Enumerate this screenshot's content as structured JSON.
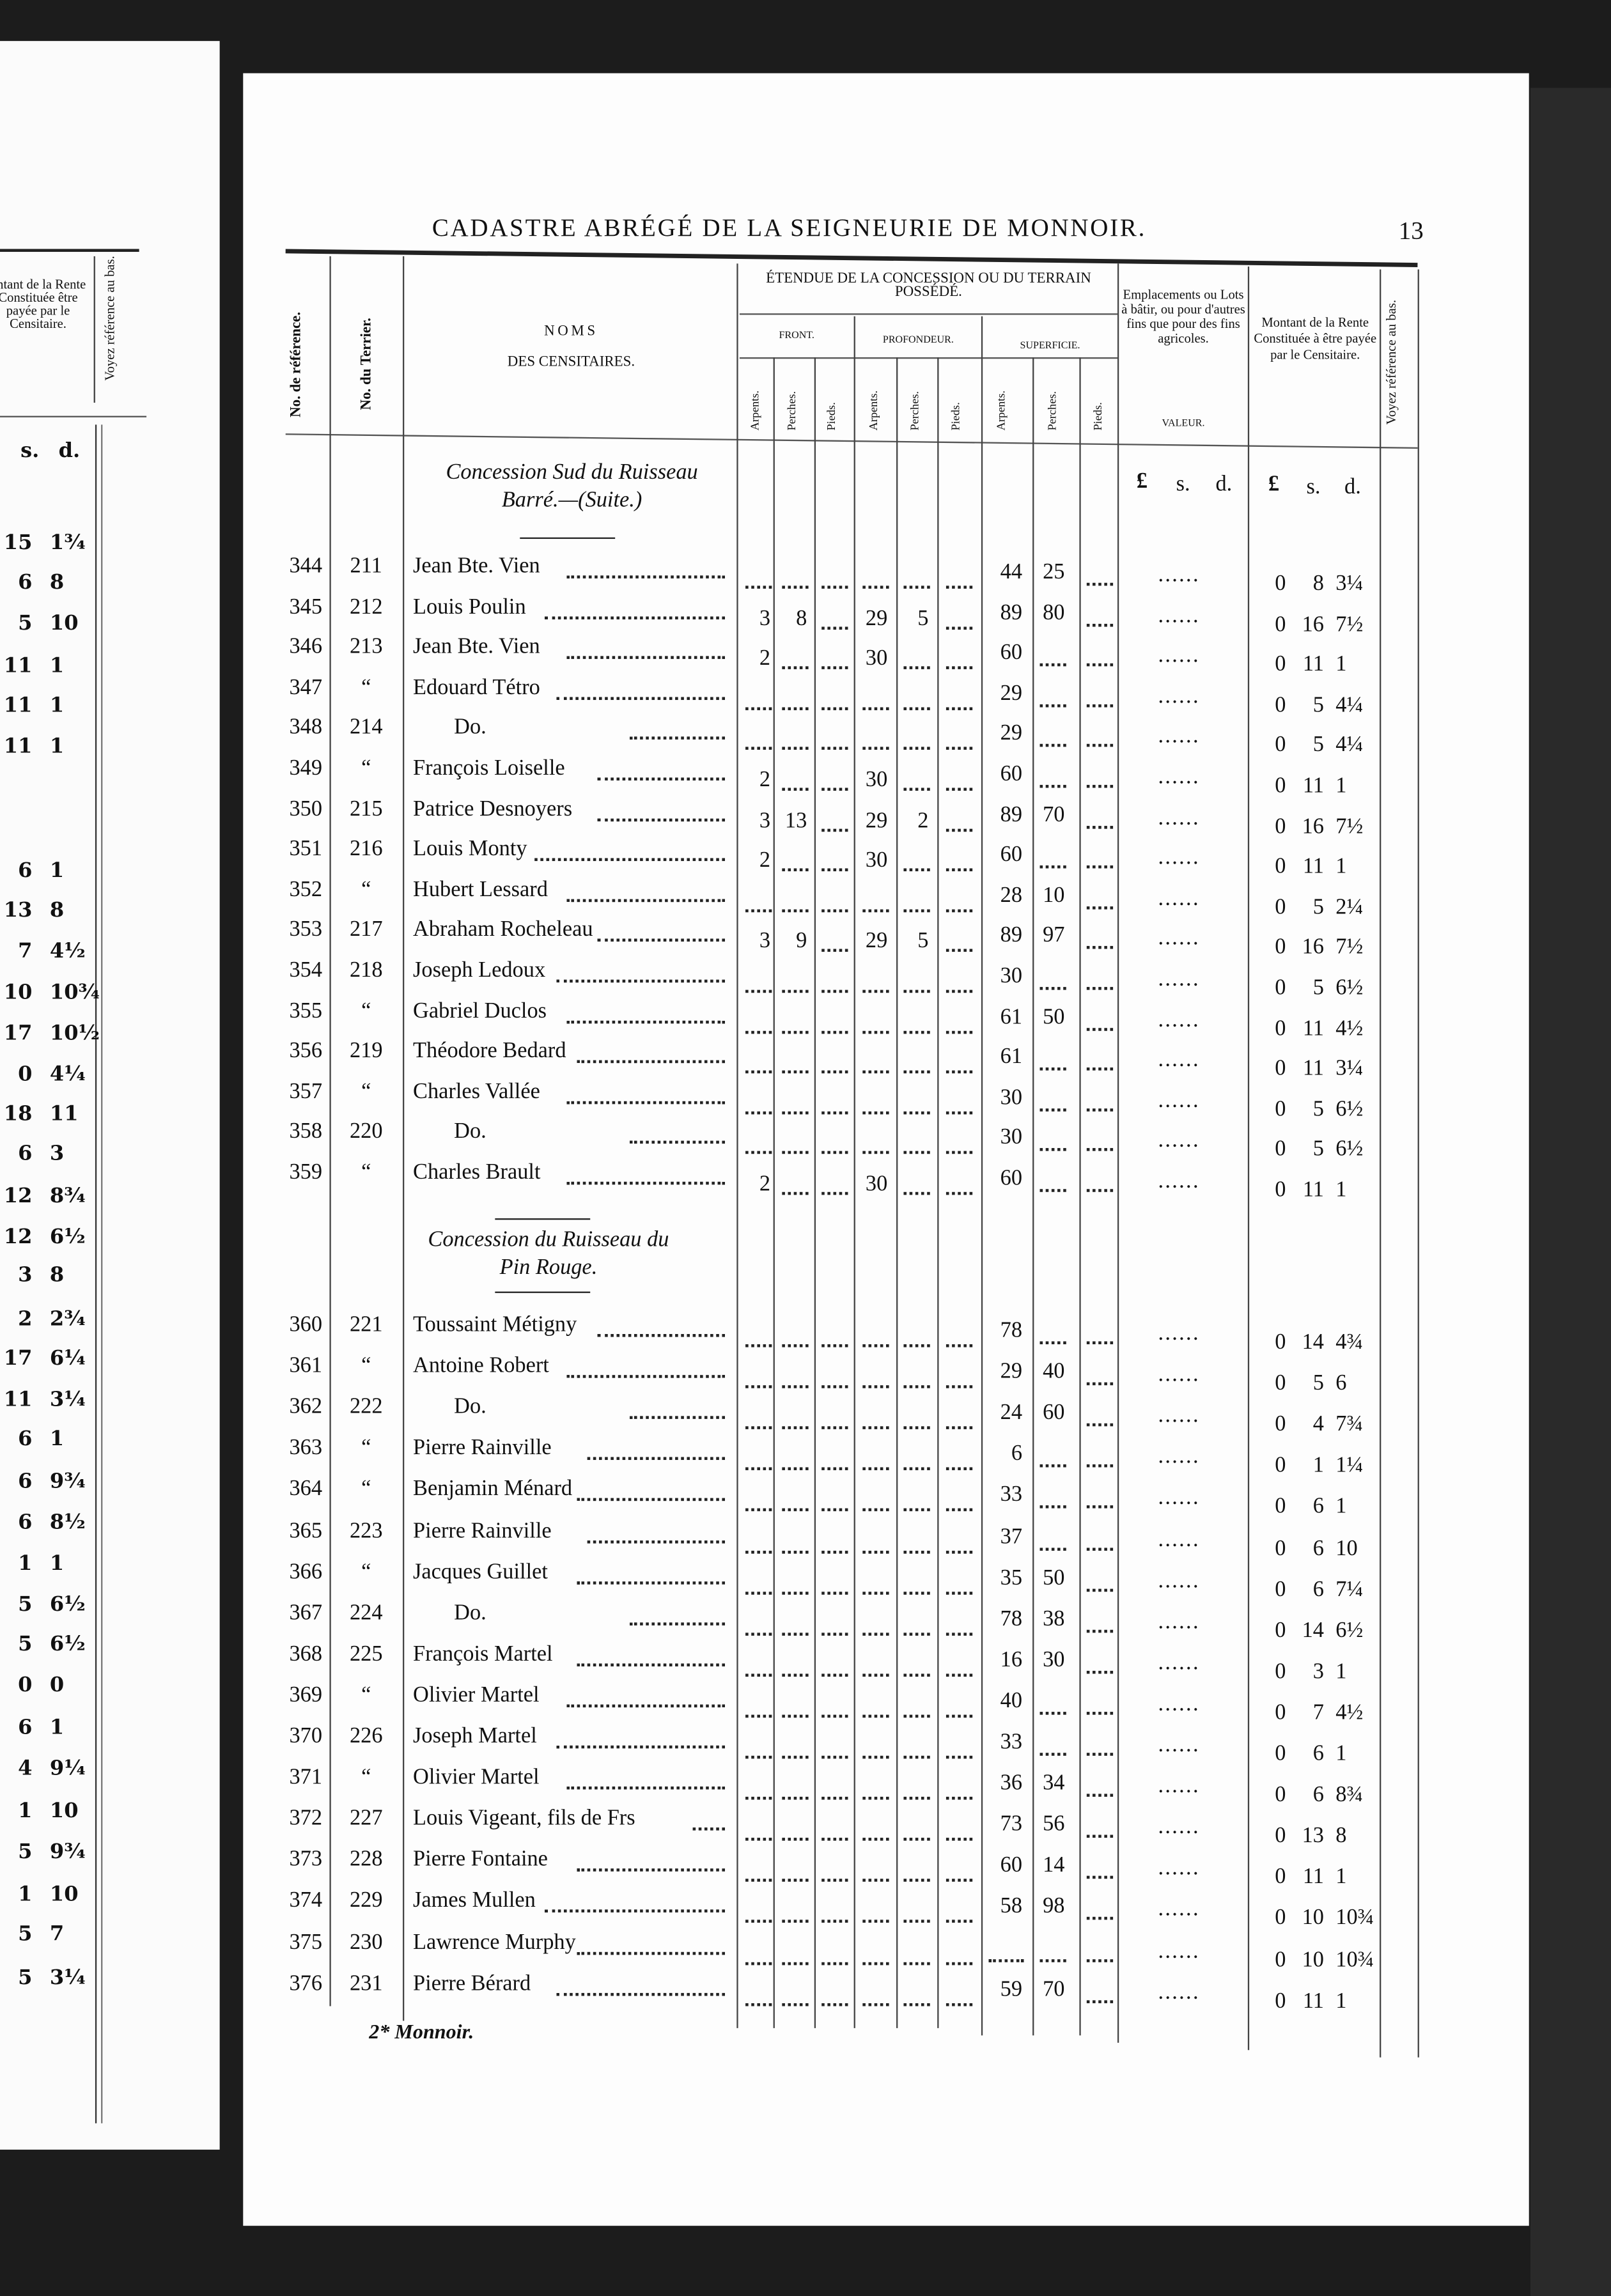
{
  "header": {
    "title": "CADASTRE ABRÉGÉ DE LA SEIGNEURIE DE MONNOIR.",
    "page_number": "13"
  },
  "columns": {
    "ref": "No. de référence.",
    "terrier": "No. du Terrier.",
    "noms_1": "NOMS",
    "noms_2": "DES CENSITAIRES.",
    "etendue": "ÉTENDUE DE LA CONCESSION OU DU TERRAIN POSSÉDÉ.",
    "front": "FRONT.",
    "profondeur": "PROFONDEUR.",
    "superficie": "SUPERFICIE.",
    "arpents": "Arpents.",
    "perches": "Perches.",
    "pieds": "Pieds.",
    "emplacements": "Emplacements ou Lots à bâtir, ou pour d'autres fins que pour des fins agricoles.",
    "valeur": "VALEUR.",
    "montant": "Montant de la Rente Constituée à être payée par le Censitaire.",
    "voyez": "Voyez référence au bas.",
    "pound": "£",
    "shilling": "s.",
    "pence": "d."
  },
  "left_page": {
    "montant_header": "ontant de la Rente Constituée être payée par le Censitaire.",
    "voyez_header": "Voyez référence au bas.",
    "s_label": "s.",
    "d_label": "d.",
    "values": [
      [
        "15",
        "1¾"
      ],
      [
        "6",
        "8"
      ],
      [
        "5",
        "10"
      ],
      [
        "11",
        "1"
      ],
      [
        "11",
        "1"
      ],
      [
        "11",
        "1"
      ],
      [
        "6",
        "1"
      ],
      [
        "13",
        "8"
      ],
      [
        "7",
        "4½"
      ],
      [
        "10",
        "10¾"
      ],
      [
        "17",
        "10½"
      ],
      [
        "0",
        "4¼"
      ],
      [
        "18",
        "11"
      ],
      [
        "6",
        "3"
      ],
      [
        "12",
        "8¾"
      ],
      [
        "12",
        "6½"
      ],
      [
        "3",
        "8"
      ],
      [
        "2",
        "2¾"
      ],
      [
        "17",
        "6¼"
      ],
      [
        "11",
        "3¼"
      ],
      [
        "6",
        "1"
      ],
      [
        "6",
        "9¾"
      ],
      [
        "6",
        "8½"
      ],
      [
        "1",
        "1"
      ],
      [
        "5",
        "6½"
      ],
      [
        "5",
        "6½"
      ],
      [
        "0",
        "0"
      ],
      [
        "6",
        "1"
      ],
      [
        "4",
        "9¼"
      ],
      [
        "1",
        "10"
      ],
      [
        "5",
        "9¾"
      ],
      [
        "1",
        "10"
      ],
      [
        "5",
        "7"
      ],
      [
        "5",
        "3¼"
      ]
    ]
  },
  "sections": [
    {
      "title_1": "Concession Sud du Ruisseau",
      "title_2": "Barré.—(Suite.)",
      "rows": [
        {
          "ref": "344",
          "terrier": "211",
          "name": "Jean Bte. Vien",
          "front": [
            "",
            "",
            ""
          ],
          "prof": [
            "",
            "",
            ""
          ],
          "sup": [
            "44",
            "25",
            ""
          ],
          "valeur": "......",
          "montant": [
            "0",
            "8",
            "3¼"
          ]
        },
        {
          "ref": "345",
          "terrier": "212",
          "name": "Louis Poulin",
          "front": [
            "3",
            "8",
            ""
          ],
          "prof": [
            "29",
            "5",
            ""
          ],
          "sup": [
            "89",
            "80",
            ""
          ],
          "valeur": "......",
          "montant": [
            "0",
            "16",
            "7½"
          ]
        },
        {
          "ref": "346",
          "terrier": "213",
          "name": "Jean Bte. Vien",
          "front": [
            "2",
            "",
            ""
          ],
          "prof": [
            "30",
            "",
            ""
          ],
          "sup": [
            "60",
            "",
            ""
          ],
          "valeur": "......",
          "montant": [
            "0",
            "11",
            "1"
          ]
        },
        {
          "ref": "347",
          "terrier": "“",
          "name": "Edouard Tétro",
          "front": [
            "",
            "",
            ""
          ],
          "prof": [
            "",
            "",
            ""
          ],
          "sup": [
            "29",
            "",
            ""
          ],
          "valeur": "......",
          "montant": [
            "0",
            "5",
            "4¼"
          ]
        },
        {
          "ref": "348",
          "terrier": "214",
          "name": "Do.",
          "front": [
            "",
            "",
            ""
          ],
          "prof": [
            "",
            "",
            ""
          ],
          "sup": [
            "29",
            "",
            ""
          ],
          "valeur": "......",
          "montant": [
            "0",
            "5",
            "4¼"
          ]
        },
        {
          "ref": "349",
          "terrier": "“",
          "name": "François Loiselle",
          "front": [
            "2",
            "",
            ""
          ],
          "prof": [
            "30",
            "",
            ""
          ],
          "sup": [
            "60",
            "",
            ""
          ],
          "valeur": "......",
          "montant": [
            "0",
            "11",
            "1"
          ]
        },
        {
          "ref": "350",
          "terrier": "215",
          "name": "Patrice Desnoyers",
          "front": [
            "3",
            "13",
            ""
          ],
          "prof": [
            "29",
            "2",
            ""
          ],
          "sup": [
            "89",
            "70",
            ""
          ],
          "valeur": "......",
          "montant": [
            "0",
            "16",
            "7½"
          ]
        },
        {
          "ref": "351",
          "terrier": "216",
          "name": "Louis Monty",
          "front": [
            "2",
            "",
            ""
          ],
          "prof": [
            "30",
            "",
            ""
          ],
          "sup": [
            "60",
            "",
            ""
          ],
          "valeur": "......",
          "montant": [
            "0",
            "11",
            "1"
          ]
        },
        {
          "ref": "352",
          "terrier": "“",
          "name": "Hubert Lessard",
          "front": [
            "",
            "",
            ""
          ],
          "prof": [
            "",
            "",
            ""
          ],
          "sup": [
            "28",
            "10",
            ""
          ],
          "valeur": "......",
          "montant": [
            "0",
            "5",
            "2¼"
          ]
        },
        {
          "ref": "353",
          "terrier": "217",
          "name": "Abraham Rocheleau",
          "front": [
            "3",
            "9",
            ""
          ],
          "prof": [
            "29",
            "5",
            ""
          ],
          "sup": [
            "89",
            "97",
            ""
          ],
          "valeur": "......",
          "montant": [
            "0",
            "16",
            "7½"
          ]
        },
        {
          "ref": "354",
          "terrier": "218",
          "name": "Joseph Ledoux",
          "front": [
            "",
            "",
            ""
          ],
          "prof": [
            "",
            "",
            ""
          ],
          "sup": [
            "30",
            "",
            ""
          ],
          "valeur": "......",
          "montant": [
            "0",
            "5",
            "6½"
          ]
        },
        {
          "ref": "355",
          "terrier": "“",
          "name": "Gabriel Duclos",
          "front": [
            "",
            "",
            ""
          ],
          "prof": [
            "",
            "",
            ""
          ],
          "sup": [
            "61",
            "50",
            ""
          ],
          "valeur": "......",
          "montant": [
            "0",
            "11",
            "4½"
          ]
        },
        {
          "ref": "356",
          "terrier": "219",
          "name": "Théodore Bedard",
          "front": [
            "",
            "",
            ""
          ],
          "prof": [
            "",
            "",
            ""
          ],
          "sup": [
            "61",
            "",
            ""
          ],
          "valeur": "......",
          "montant": [
            "0",
            "11",
            "3¼"
          ]
        },
        {
          "ref": "357",
          "terrier": "“",
          "name": "Charles Vallée",
          "front": [
            "",
            "",
            ""
          ],
          "prof": [
            "",
            "",
            ""
          ],
          "sup": [
            "30",
            "",
            ""
          ],
          "valeur": "......",
          "montant": [
            "0",
            "5",
            "6½"
          ]
        },
        {
          "ref": "358",
          "terrier": "220",
          "name": "Do.",
          "front": [
            "",
            "",
            ""
          ],
          "prof": [
            "",
            "",
            ""
          ],
          "sup": [
            "30",
            "",
            ""
          ],
          "valeur": "......",
          "montant": [
            "0",
            "5",
            "6½"
          ]
        },
        {
          "ref": "359",
          "terrier": "“",
          "name": "Charles Brault",
          "front": [
            "2",
            "",
            ""
          ],
          "prof": [
            "30",
            "",
            ""
          ],
          "sup": [
            "60",
            "",
            ""
          ],
          "valeur": "......",
          "montant": [
            "0",
            "11",
            "1"
          ]
        }
      ]
    },
    {
      "title_1": "Concession du Ruisseau du",
      "title_2": "Pin Rouge.",
      "rows": [
        {
          "ref": "360",
          "terrier": "221",
          "name": "Toussaint Métigny",
          "front": [
            "",
            "",
            ""
          ],
          "prof": [
            "",
            "",
            ""
          ],
          "sup": [
            "78",
            "",
            ""
          ],
          "valeur": "......",
          "montant": [
            "0",
            "14",
            "4¾"
          ]
        },
        {
          "ref": "361",
          "terrier": "“",
          "name": "Antoine Robert",
          "front": [
            "",
            "",
            ""
          ],
          "prof": [
            "",
            "",
            ""
          ],
          "sup": [
            "29",
            "40",
            ""
          ],
          "valeur": "......",
          "montant": [
            "0",
            "5",
            "6"
          ]
        },
        {
          "ref": "362",
          "terrier": "222",
          "name": "Do.",
          "front": [
            "",
            "",
            ""
          ],
          "prof": [
            "",
            "",
            ""
          ],
          "sup": [
            "24",
            "60",
            ""
          ],
          "valeur": "......",
          "montant": [
            "0",
            "4",
            "7¾"
          ]
        },
        {
          "ref": "363",
          "terrier": "“",
          "name": "Pierre Rainville",
          "front": [
            "",
            "",
            ""
          ],
          "prof": [
            "",
            "",
            ""
          ],
          "sup": [
            "6",
            "",
            ""
          ],
          "valeur": "......",
          "montant": [
            "0",
            "1",
            "1¼"
          ]
        },
        {
          "ref": "364",
          "terrier": "“",
          "name": "Benjamin Ménard",
          "front": [
            "",
            "",
            ""
          ],
          "prof": [
            "",
            "",
            ""
          ],
          "sup": [
            "33",
            "",
            ""
          ],
          "valeur": "......",
          "montant": [
            "0",
            "6",
            "1"
          ]
        },
        {
          "ref": "365",
          "terrier": "223",
          "name": "Pierre Rainville",
          "front": [
            "",
            "",
            ""
          ],
          "prof": [
            "",
            "",
            ""
          ],
          "sup": [
            "37",
            "",
            ""
          ],
          "valeur": "......",
          "montant": [
            "0",
            "6",
            "10"
          ]
        },
        {
          "ref": "366",
          "terrier": "“",
          "name": "Jacques Guillet",
          "front": [
            "",
            "",
            ""
          ],
          "prof": [
            "",
            "",
            ""
          ],
          "sup": [
            "35",
            "50",
            ""
          ],
          "valeur": "......",
          "montant": [
            "0",
            "6",
            "7¼"
          ]
        },
        {
          "ref": "367",
          "terrier": "224",
          "name": "Do.",
          "front": [
            "",
            "",
            ""
          ],
          "prof": [
            "",
            "",
            ""
          ],
          "sup": [
            "78",
            "38",
            ""
          ],
          "valeur": "......",
          "montant": [
            "0",
            "14",
            "6½"
          ]
        },
        {
          "ref": "368",
          "terrier": "225",
          "name": "François Martel",
          "front": [
            "",
            "",
            ""
          ],
          "prof": [
            "",
            "",
            ""
          ],
          "sup": [
            "16",
            "30",
            ""
          ],
          "valeur": "......",
          "montant": [
            "0",
            "3",
            "1"
          ]
        },
        {
          "ref": "369",
          "terrier": "“",
          "name": "Olivier Martel",
          "front": [
            "",
            "",
            ""
          ],
          "prof": [
            "",
            "",
            ""
          ],
          "sup": [
            "40",
            "",
            ""
          ],
          "valeur": "......",
          "montant": [
            "0",
            "7",
            "4½"
          ]
        },
        {
          "ref": "370",
          "terrier": "226",
          "name": "Joseph Martel",
          "front": [
            "",
            "",
            ""
          ],
          "prof": [
            "",
            "",
            ""
          ],
          "sup": [
            "33",
            "",
            ""
          ],
          "valeur": "......",
          "montant": [
            "0",
            "6",
            "1"
          ]
        },
        {
          "ref": "371",
          "terrier": "“",
          "name": "Olivier Martel",
          "front": [
            "",
            "",
            ""
          ],
          "prof": [
            "",
            "",
            ""
          ],
          "sup": [
            "36",
            "34",
            ""
          ],
          "valeur": "......",
          "montant": [
            "0",
            "6",
            "8¾"
          ]
        },
        {
          "ref": "372",
          "terrier": "227",
          "name": "Louis Vigeant, fils de Frs",
          "front": [
            "",
            "",
            ""
          ],
          "prof": [
            "",
            "",
            ""
          ],
          "sup": [
            "73",
            "56",
            ""
          ],
          "valeur": "......",
          "montant": [
            "0",
            "13",
            "8"
          ]
        },
        {
          "ref": "373",
          "terrier": "228",
          "name": "Pierre Fontaine",
          "front": [
            "",
            "",
            ""
          ],
          "prof": [
            "",
            "",
            ""
          ],
          "sup": [
            "60",
            "14",
            ""
          ],
          "valeur": "......",
          "montant": [
            "0",
            "11",
            "1"
          ]
        },
        {
          "ref": "374",
          "terrier": "229",
          "name": "James Mullen",
          "front": [
            "",
            "",
            ""
          ],
          "prof": [
            "",
            "",
            ""
          ],
          "sup": [
            "58",
            "98",
            ""
          ],
          "valeur": "......",
          "montant": [
            "0",
            "10",
            "10¾"
          ]
        },
        {
          "ref": "375",
          "terrier": "230",
          "name": "Lawrence Murphy",
          "front": [
            "",
            "",
            ""
          ],
          "prof": [
            "",
            "",
            ""
          ],
          "sup": [
            "",
            "",
            ""
          ],
          "valeur": "......",
          "montant": [
            "0",
            "10",
            "10¾"
          ]
        },
        {
          "ref": "376",
          "terrier": "231",
          "name": "Pierre Bérard",
          "front": [
            "",
            "",
            ""
          ],
          "prof": [
            "",
            "",
            ""
          ],
          "sup": [
            "59",
            "70",
            ""
          ],
          "valeur": "......",
          "montant": [
            "0",
            "11",
            "1"
          ]
        }
      ]
    }
  ],
  "footer": {
    "signature_mark": "2* Monnoir."
  }
}
